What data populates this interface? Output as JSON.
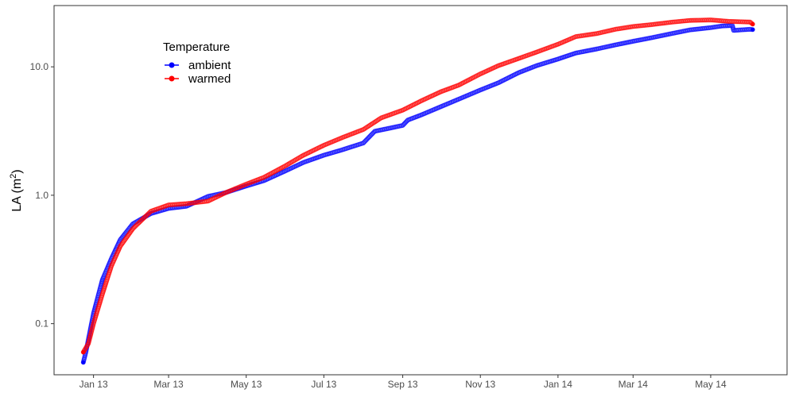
{
  "chart_data": {
    "type": "line",
    "ylabel": "LA (m",
    "ylabel_sup": "2",
    "ylabel_close": ")",
    "y_scale": "log",
    "ylim": [
      0.04,
      30
    ],
    "y_ticks": [
      {
        "value": 0.1,
        "label": "0.1"
      },
      {
        "value": 1.0,
        "label": "1.0"
      },
      {
        "value": 10.0,
        "label": "10.0"
      }
    ],
    "xlim": [
      "2012-12-01",
      "2014-06-30"
    ],
    "x_ticks": [
      {
        "value": "2013-01-01",
        "label": "Jan 13"
      },
      {
        "value": "2013-03-01",
        "label": "Mar 13"
      },
      {
        "value": "2013-05-01",
        "label": "May 13"
      },
      {
        "value": "2013-07-01",
        "label": "Jul 13"
      },
      {
        "value": "2013-09-01",
        "label": "Sep 13"
      },
      {
        "value": "2013-11-01",
        "label": "Nov 13"
      },
      {
        "value": "2014-01-01",
        "label": "Jan 14"
      },
      {
        "value": "2014-03-01",
        "label": "Mar 14"
      },
      {
        "value": "2014-05-01",
        "label": "May 14"
      }
    ],
    "grid": false,
    "legend": {
      "title": "Temperature",
      "position": "top-left"
    },
    "series": [
      {
        "name": "ambient",
        "color": "#0000ff",
        "points": [
          [
            "2012-12-24",
            0.05
          ],
          [
            "2012-12-26",
            0.06
          ],
          [
            "2013-01-01",
            0.12
          ],
          [
            "2013-01-08",
            0.22
          ],
          [
            "2013-01-15",
            0.32
          ],
          [
            "2013-01-22",
            0.45
          ],
          [
            "2013-02-01",
            0.6
          ],
          [
            "2013-02-15",
            0.72
          ],
          [
            "2013-03-01",
            0.79
          ],
          [
            "2013-03-15",
            0.82
          ],
          [
            "2013-04-01",
            0.98
          ],
          [
            "2013-04-15",
            1.05
          ],
          [
            "2013-05-01",
            1.18
          ],
          [
            "2013-05-15",
            1.3
          ],
          [
            "2013-06-01",
            1.55
          ],
          [
            "2013-06-15",
            1.8
          ],
          [
            "2013-07-01",
            2.05
          ],
          [
            "2013-07-15",
            2.25
          ],
          [
            "2013-08-01",
            2.55
          ],
          [
            "2013-08-10",
            3.15
          ],
          [
            "2013-08-20",
            3.3
          ],
          [
            "2013-09-01",
            3.5
          ],
          [
            "2013-09-05",
            3.85
          ],
          [
            "2013-09-15",
            4.2
          ],
          [
            "2013-10-01",
            4.9
          ],
          [
            "2013-10-15",
            5.6
          ],
          [
            "2013-11-01",
            6.6
          ],
          [
            "2013-11-15",
            7.5
          ],
          [
            "2013-12-01",
            9.0
          ],
          [
            "2013-12-15",
            10.2
          ],
          [
            "2014-01-01",
            11.5
          ],
          [
            "2014-01-15",
            12.8
          ],
          [
            "2014-02-01",
            13.8
          ],
          [
            "2014-02-15",
            14.8
          ],
          [
            "2014-03-01",
            15.8
          ],
          [
            "2014-03-15",
            16.8
          ],
          [
            "2014-04-01",
            18.2
          ],
          [
            "2014-04-15",
            19.4
          ],
          [
            "2014-05-01",
            20.2
          ],
          [
            "2014-05-10",
            20.8
          ],
          [
            "2014-05-18",
            21.0
          ],
          [
            "2014-05-19",
            19.2
          ],
          [
            "2014-05-25",
            19.4
          ],
          [
            "2014-06-01",
            19.6
          ],
          [
            "2014-06-03",
            19.5
          ]
        ]
      },
      {
        "name": "warmed",
        "color": "#ff0000",
        "points": [
          [
            "2012-12-24",
            0.06
          ],
          [
            "2012-12-28",
            0.07
          ],
          [
            "2013-01-01",
            0.1
          ],
          [
            "2013-01-08",
            0.17
          ],
          [
            "2013-01-15",
            0.28
          ],
          [
            "2013-01-22",
            0.4
          ],
          [
            "2013-02-01",
            0.55
          ],
          [
            "2013-02-15",
            0.75
          ],
          [
            "2013-03-01",
            0.84
          ],
          [
            "2013-03-15",
            0.86
          ],
          [
            "2013-04-01",
            0.9
          ],
          [
            "2013-04-15",
            1.05
          ],
          [
            "2013-05-01",
            1.22
          ],
          [
            "2013-05-15",
            1.38
          ],
          [
            "2013-06-01",
            1.7
          ],
          [
            "2013-06-15",
            2.05
          ],
          [
            "2013-07-01",
            2.45
          ],
          [
            "2013-07-15",
            2.8
          ],
          [
            "2013-08-01",
            3.25
          ],
          [
            "2013-08-15",
            4.0
          ],
          [
            "2013-09-01",
            4.6
          ],
          [
            "2013-09-15",
            5.4
          ],
          [
            "2013-10-01",
            6.4
          ],
          [
            "2013-10-15",
            7.2
          ],
          [
            "2013-11-01",
            8.8
          ],
          [
            "2013-11-15",
            10.2
          ],
          [
            "2013-12-01",
            11.6
          ],
          [
            "2013-12-15",
            13.0
          ],
          [
            "2014-01-01",
            15.0
          ],
          [
            "2014-01-15",
            17.2
          ],
          [
            "2014-02-01",
            18.2
          ],
          [
            "2014-02-15",
            19.6
          ],
          [
            "2014-03-01",
            20.6
          ],
          [
            "2014-03-15",
            21.3
          ],
          [
            "2014-04-01",
            22.3
          ],
          [
            "2014-04-15",
            23.0
          ],
          [
            "2014-05-01",
            23.2
          ],
          [
            "2014-05-15",
            22.6
          ],
          [
            "2014-06-01",
            22.3
          ],
          [
            "2014-06-03",
            21.5
          ]
        ]
      }
    ]
  }
}
